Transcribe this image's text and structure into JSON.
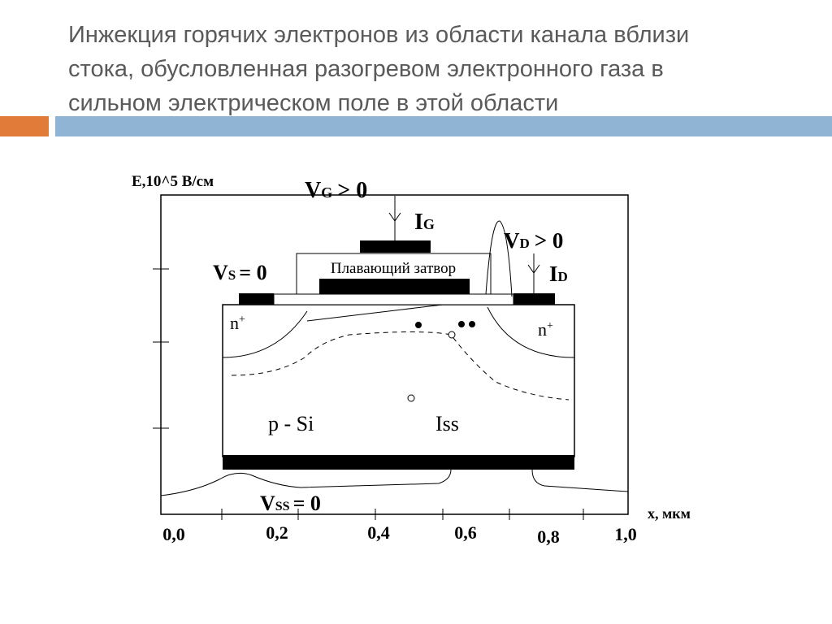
{
  "header": {
    "title_lines": [
      "Инжекция горячих электронов из области канала вблизи",
      "стока, обусловленная разогревом электронного газа в",
      "сильном электрическом поле в этой области"
    ]
  },
  "diagram": {
    "y_axis_label": "E,10^5 В/см",
    "x_axis_label": "x, мкм",
    "x_tick_labels": [
      "0,0",
      "0,2",
      "0,4",
      "0,6",
      "0,8",
      "1,0"
    ],
    "vg": {
      "main": "V",
      "sub": "G",
      "rest": "> 0"
    },
    "ig": {
      "main": "I",
      "sub": "G"
    },
    "vs": {
      "main": "V",
      "sub": "S",
      "rest": "= 0"
    },
    "vd": {
      "main": "V",
      "sub": "D",
      "rest": "> 0"
    },
    "id": {
      "main": "I",
      "sub": "D"
    },
    "vss": {
      "main": "V",
      "sub": "SS",
      "rest": "= 0"
    },
    "gate_label": "Плавающий затвор",
    "n_left": {
      "main": "n",
      "sup": "+"
    },
    "n_right": {
      "main": "n",
      "sup": "+"
    },
    "substrate_label": "p - Si",
    "iss_label": "Iss"
  }
}
